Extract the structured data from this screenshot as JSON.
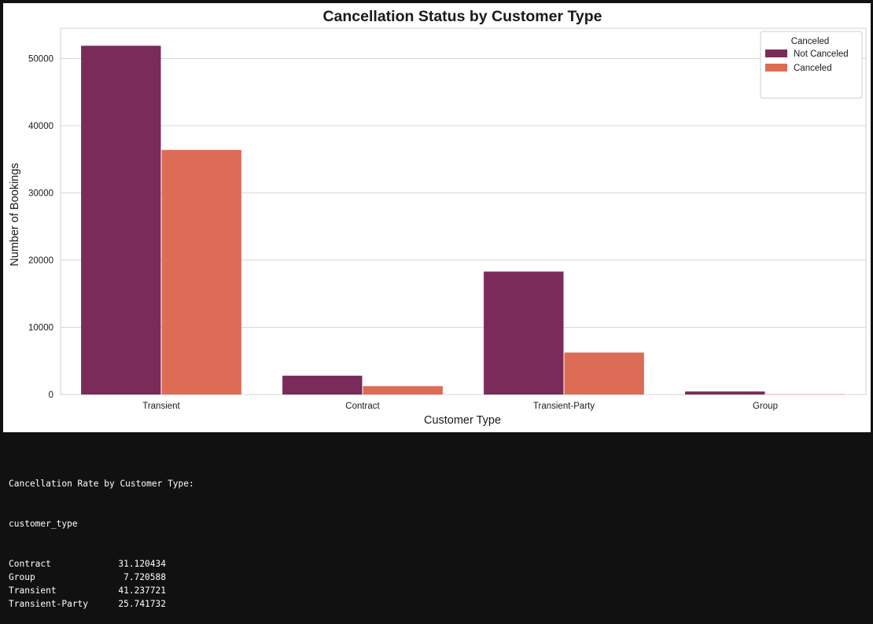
{
  "chart_data": {
    "type": "bar",
    "title": "Cancellation Status by Customer Type",
    "xlabel": "Customer Type",
    "ylabel": "Number of Bookings",
    "categories": [
      "Transient",
      "Contract",
      "Transient-Party",
      "Group"
    ],
    "series": [
      {
        "name": "Not Canceled",
        "color": "#7a2b5a",
        "values": [
          51900,
          2800,
          18300,
          450
        ]
      },
      {
        "name": "Canceled",
        "color": "#dd6c56",
        "values": [
          36400,
          1250,
          6250,
          40
        ]
      }
    ],
    "yticks": [
      0,
      10000,
      20000,
      30000,
      40000,
      50000
    ],
    "ylim": [
      0,
      54500
    ],
    "grid": true,
    "legend": {
      "title": "Canceled",
      "position": "top-right"
    }
  },
  "output": {
    "heading": "Cancellation Rate by Customer Type:",
    "index_name": "customer_type",
    "rows": [
      {
        "label": "Contract",
        "value": "31.120434"
      },
      {
        "label": "Group",
        "value": "7.720588"
      },
      {
        "label": "Transient",
        "value": "41.237721"
      },
      {
        "label": "Transient-Party",
        "value": "25.741732"
      }
    ]
  }
}
